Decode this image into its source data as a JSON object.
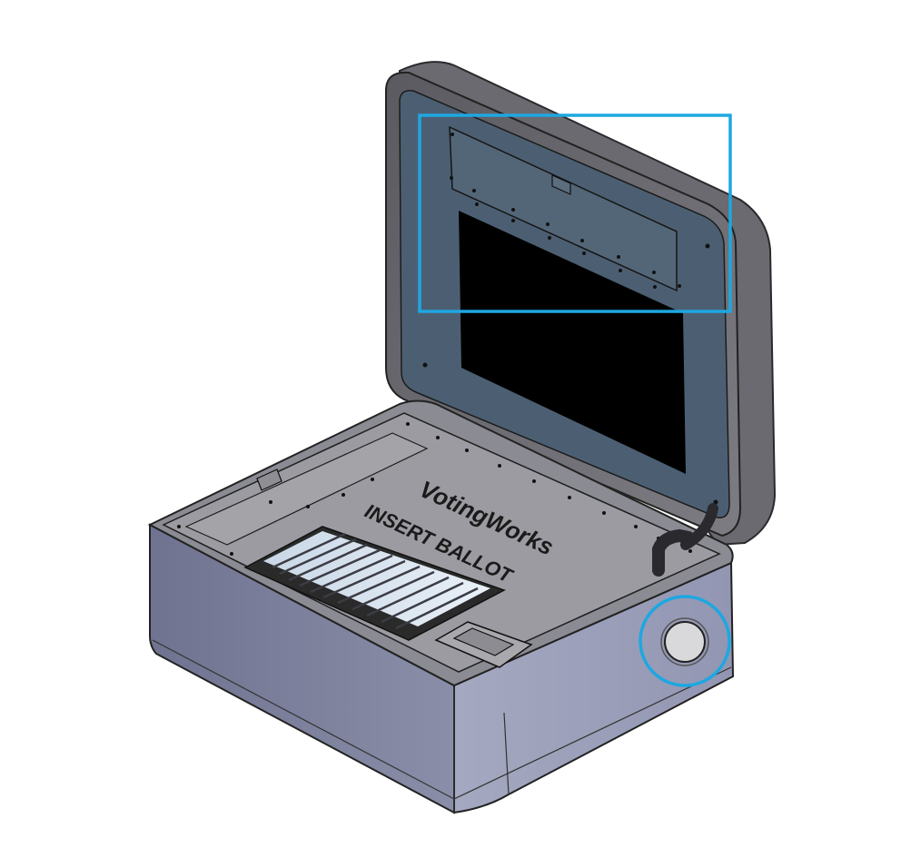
{
  "scene": {
    "subject": "VotingWorks ballot box",
    "brand": "VotingWorks",
    "slot_label": "INSERT BALLOT",
    "callouts": {
      "lid_panel": "highlight-rectangle",
      "side_button": "highlight-circle"
    },
    "colors": {
      "highlight": "#1ea7e1",
      "lid_frame": "#6e6e73",
      "lid_inner": "#4a5d70",
      "screen": "#000000",
      "base_side": "#8f93ad",
      "base_top": "#9a9a9f",
      "button": "#d8d8d8"
    }
  }
}
